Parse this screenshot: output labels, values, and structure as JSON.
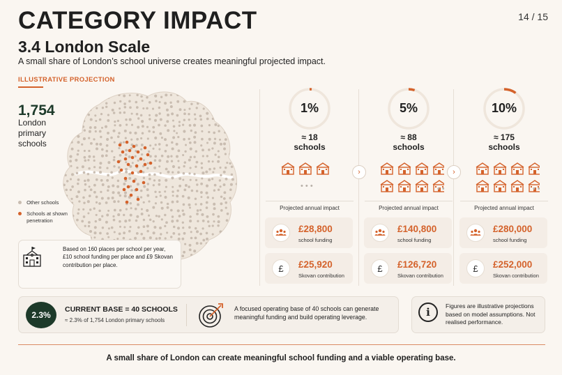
{
  "header": {
    "title": "CATEGORY IMPACT",
    "page": "14 / 15",
    "subtitle": "3.4 London Scale",
    "tagline": "A small share of London’s school universe creates meaningful projected impact."
  },
  "section_label": "ILLUSTRATIVE PROJECTION",
  "map_panel": {
    "count": "1,754",
    "count_label": "London primary schools",
    "legend_other": "Other schools",
    "legend_shown": "Schools at shown penetration",
    "note": "Based on 160 places per school per year, £10 school funding per place and £9 Skovan contribution per place."
  },
  "colors": {
    "accent": "#d4622b",
    "dark_green": "#1d3a2a",
    "dot_grey": "#c9bdb1",
    "ring_track": "#efe6dc"
  },
  "scenarios": [
    {
      "pct": "1%",
      "penetration": 0.01,
      "approx": "≈ 18",
      "unit": "schools",
      "proj_label": "Projected annual impact",
      "funding": "£28,800",
      "funding_label": "school funding",
      "contribution": "£25,920",
      "contribution_label": "Skovan contribution"
    },
    {
      "pct": "5%",
      "penetration": 0.05,
      "approx": "≈ 88",
      "unit": "schools",
      "proj_label": "Projected annual impact",
      "funding": "£140,800",
      "funding_label": "school funding",
      "contribution": "£126,720",
      "contribution_label": "Skovan contribution"
    },
    {
      "pct": "10%",
      "penetration": 0.1,
      "approx": "≈ 175",
      "unit": "schools",
      "proj_label": "Projected annual impact",
      "funding": "£280,000",
      "funding_label": "school funding",
      "contribution": "£252,000",
      "contribution_label": "Skovan contribution"
    }
  ],
  "icons": {
    "people": "people-icon",
    "pound": "£",
    "school": "school-building-icon",
    "target": "target-icon",
    "info": "i",
    "next": "›"
  },
  "base": {
    "pct": "2.3%",
    "title": "CURRENT BASE = 40 SCHOOLS",
    "sub": "≈ 2.3% of 1,754 London primary schools",
    "focus": "A focused operating base of 40 schools can generate meaningful funding and build operating leverage."
  },
  "disclaimer": "Figures are illustrative projections based on model assumptions. Not realised performance.",
  "footer": "A small share of London can create meaningful school funding and a viable operating base."
}
